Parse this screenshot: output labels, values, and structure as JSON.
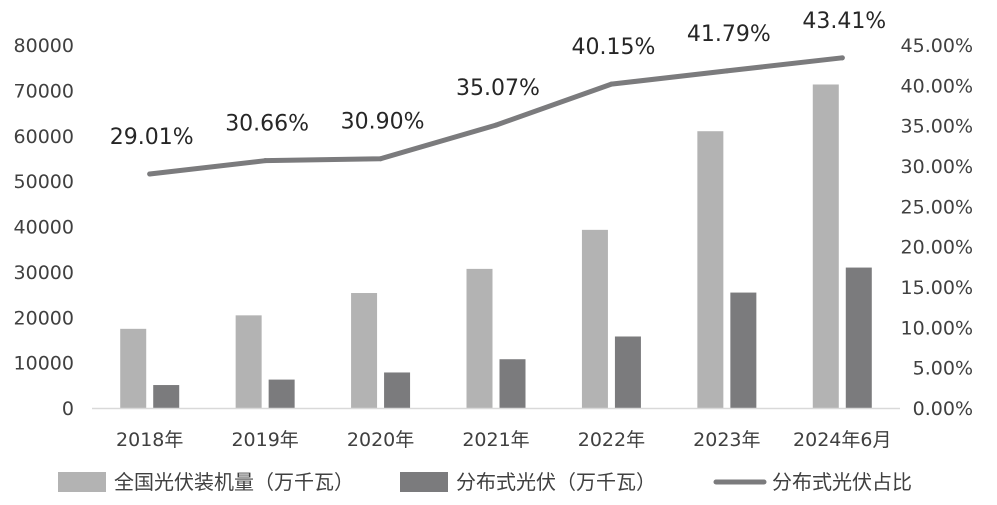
{
  "chart_data": {
    "type": "bar",
    "categories": [
      "2018年",
      "2019年",
      "2020年",
      "2021年",
      "2022年",
      "2023年",
      "2024年6月"
    ],
    "series": [
      {
        "name": "全国光伏装机量（万千瓦）",
        "type": "bar",
        "axis": "left",
        "color": "#b3b3b3",
        "values": [
          17450,
          20420,
          25340,
          30660,
          39260,
          61000,
          71300
        ]
      },
      {
        "name": "分布式光伏（万千瓦）",
        "type": "bar",
        "axis": "left",
        "color": "#7b7b7d",
        "values": [
          5060,
          6260,
          7830,
          10750,
          15760,
          25440,
          30950
        ]
      },
      {
        "name": "分布式光伏占比",
        "type": "line",
        "axis": "right",
        "color": "#7b7b7d",
        "values": [
          29.01,
          30.66,
          30.9,
          35.07,
          40.15,
          41.79,
          43.41
        ],
        "labels": [
          "29.01%",
          "30.66%",
          "30.90%",
          "35.07%",
          "40.15%",
          "41.79%",
          "43.41%"
        ]
      }
    ],
    "y_left": {
      "min": 0,
      "max": 80000,
      "step": 10000,
      "ticks": [
        "0",
        "10000",
        "20000",
        "30000",
        "40000",
        "50000",
        "60000",
        "70000",
        "80000"
      ]
    },
    "y_right": {
      "min": 0,
      "max": 45,
      "step": 5,
      "ticks": [
        "0.00%",
        "5.00%",
        "10.00%",
        "15.00%",
        "20.00%",
        "25.00%",
        "30.00%",
        "35.00%",
        "40.00%",
        "45.00%"
      ]
    },
    "grid": false,
    "legend": {
      "position": "bottom",
      "entries": [
        "全国光伏装机量（万千瓦）",
        "分布式光伏（万千瓦）",
        "分布式光伏占比"
      ]
    }
  }
}
